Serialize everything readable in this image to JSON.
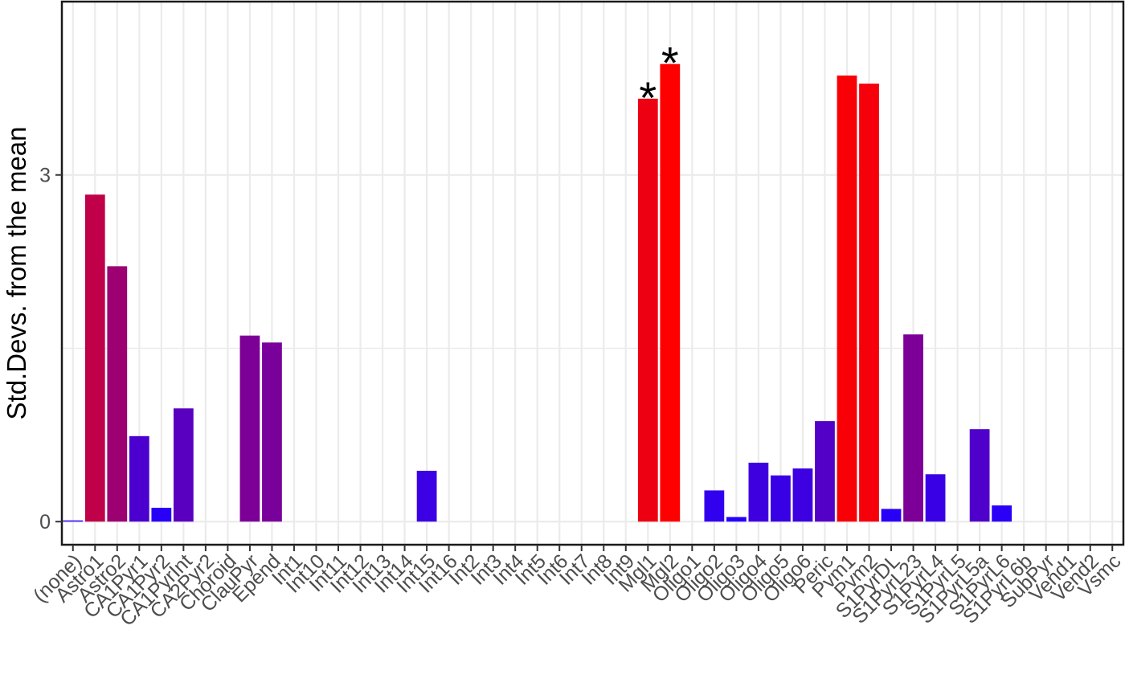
{
  "chart_data": {
    "type": "bar",
    "title": "",
    "xlabel": "",
    "ylabel": "Std.Devs. from the mean",
    "ylim": [
      -0.2,
      4.5
    ],
    "y_ticks": [
      0,
      3
    ],
    "grid": true,
    "significance_marker": "*",
    "categories": [
      "(none)",
      "Astro1",
      "Astro2",
      "CA1Pyr1",
      "CA1Pyr2",
      "CA1PyrInt",
      "CA2Pyr2",
      "Choroid",
      "ClauPyr",
      "Epend",
      "Int1",
      "Int10",
      "Int11",
      "Int12",
      "Int13",
      "Int14",
      "Int15",
      "Int16",
      "Int2",
      "Int3",
      "Int4",
      "Int5",
      "Int6",
      "Int7",
      "Int8",
      "Int9",
      "Mgl1",
      "Mgl2",
      "Oligo1",
      "Oligo2",
      "Oligo3",
      "Oligo4",
      "Oligo5",
      "Oligo6",
      "Peric",
      "Pvm1",
      "Pvm2",
      "S1PyrDL",
      "S1PyrL23",
      "S1PyrL4",
      "S1PyrL5",
      "S1PyrL5a",
      "S1PyrL6",
      "S1PyrL6b",
      "SubPyr",
      "Vend1",
      "Vend2",
      "Vsmc"
    ],
    "values": [
      0.01,
      2.83,
      2.21,
      0.74,
      0.12,
      0.98,
      0,
      0,
      1.61,
      1.55,
      0,
      0,
      0,
      0,
      0,
      0,
      0.44,
      0,
      0,
      0,
      0,
      0,
      0,
      0,
      0,
      0,
      3.66,
      3.96,
      0,
      0.27,
      0.04,
      0.51,
      0.4,
      0.46,
      0.87,
      3.86,
      3.79,
      0.11,
      1.62,
      0.41,
      0,
      0.8,
      0.14,
      0,
      0,
      0,
      0,
      0
    ],
    "significant": [
      "Mgl1",
      "Mgl2"
    ],
    "color_scale": {
      "low": "#2200ff",
      "high": "#ff0000",
      "min": 0,
      "max": 3.96
    }
  }
}
